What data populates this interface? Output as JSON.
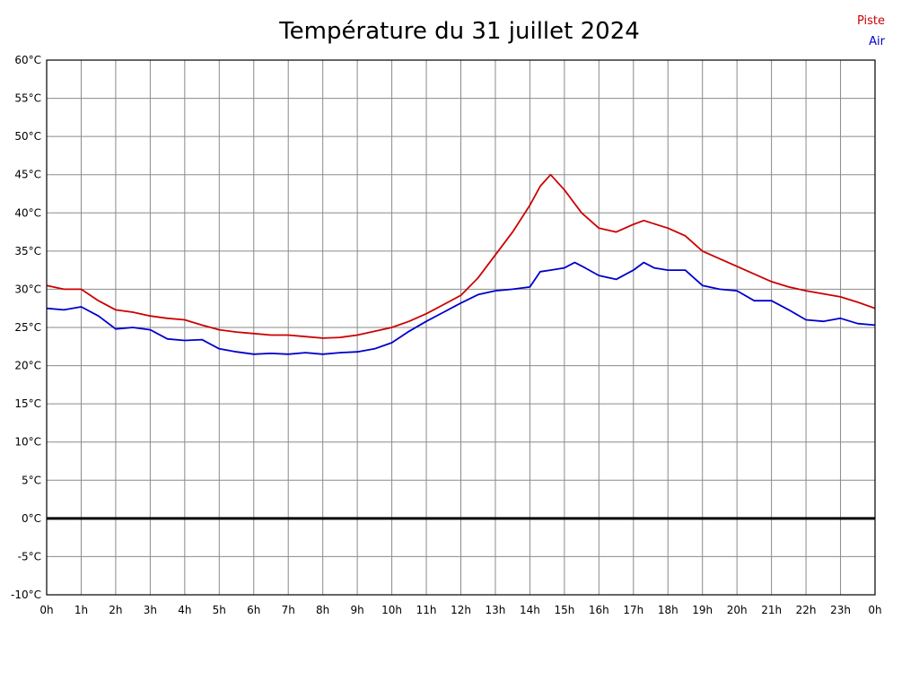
{
  "title": "Température du 31 juillet 2024",
  "legend": {
    "piste_label": "Piste",
    "air_label": "Air",
    "piste_color": "#cc0000",
    "air_color": "#0000cc"
  },
  "chart_data": {
    "type": "line",
    "title": "Température du 31 juillet 2024",
    "xlabel": "",
    "ylabel": "",
    "x_unit": "hour of day",
    "y_unit": "°C",
    "xlim": [
      0,
      24
    ],
    "ylim": [
      -10,
      60
    ],
    "grid": true,
    "zero_line": true,
    "legend_position": "top-right",
    "x_tick_labels": [
      "0h",
      "1h",
      "2h",
      "3h",
      "4h",
      "5h",
      "6h",
      "7h",
      "8h",
      "9h",
      "10h",
      "11h",
      "12h",
      "13h",
      "14h",
      "15h",
      "16h",
      "17h",
      "18h",
      "19h",
      "20h",
      "21h",
      "22h",
      "23h",
      "0h"
    ],
    "y_tick_labels": [
      "60°C",
      "55°C",
      "50°C",
      "45°C",
      "40°C",
      "35°C",
      "30°C",
      "25°C",
      "20°C",
      "15°C",
      "10°C",
      "5°C",
      "0°C",
      "-5°C",
      "-10°C"
    ],
    "series": [
      {
        "name": "Piste",
        "color": "#cc0000",
        "points": [
          [
            0,
            30.5
          ],
          [
            0.5,
            30.0
          ],
          [
            1,
            30.0
          ],
          [
            1.5,
            28.5
          ],
          [
            2,
            27.3
          ],
          [
            2.5,
            27.0
          ],
          [
            3,
            26.5
          ],
          [
            3.5,
            26.2
          ],
          [
            4,
            26.0
          ],
          [
            4.5,
            25.3
          ],
          [
            5,
            24.7
          ],
          [
            5.5,
            24.4
          ],
          [
            6,
            24.2
          ],
          [
            6.5,
            24.0
          ],
          [
            7,
            24.0
          ],
          [
            7.5,
            23.8
          ],
          [
            8,
            23.6
          ],
          [
            8.5,
            23.7
          ],
          [
            9,
            24.0
          ],
          [
            9.5,
            24.5
          ],
          [
            10,
            25.0
          ],
          [
            10.5,
            25.8
          ],
          [
            11,
            26.8
          ],
          [
            11.5,
            28.0
          ],
          [
            12,
            29.2
          ],
          [
            12.5,
            31.5
          ],
          [
            13,
            34.5
          ],
          [
            13.5,
            37.5
          ],
          [
            14,
            41.0
          ],
          [
            14.3,
            43.5
          ],
          [
            14.6,
            45.0
          ],
          [
            15,
            43.0
          ],
          [
            15.5,
            40.0
          ],
          [
            16,
            38.0
          ],
          [
            16.5,
            37.5
          ],
          [
            17,
            38.5
          ],
          [
            17.3,
            39.0
          ],
          [
            18,
            38.0
          ],
          [
            18.5,
            37.0
          ],
          [
            19,
            35.0
          ],
          [
            19.5,
            34.0
          ],
          [
            20,
            33.0
          ],
          [
            20.5,
            32.0
          ],
          [
            21,
            31.0
          ],
          [
            21.5,
            30.3
          ],
          [
            22,
            29.8
          ],
          [
            22.5,
            29.4
          ],
          [
            23,
            29.0
          ],
          [
            23.5,
            28.3
          ],
          [
            24,
            27.5
          ]
        ]
      },
      {
        "name": "Air",
        "color": "#0000cc",
        "points": [
          [
            0,
            27.5
          ],
          [
            0.5,
            27.3
          ],
          [
            1,
            27.7
          ],
          [
            1.5,
            26.5
          ],
          [
            2,
            24.8
          ],
          [
            2.5,
            25.0
          ],
          [
            3,
            24.7
          ],
          [
            3.5,
            23.5
          ],
          [
            4,
            23.3
          ],
          [
            4.5,
            23.4
          ],
          [
            5,
            22.2
          ],
          [
            5.5,
            21.8
          ],
          [
            6,
            21.5
          ],
          [
            6.5,
            21.6
          ],
          [
            7,
            21.5
          ],
          [
            7.5,
            21.7
          ],
          [
            8,
            21.5
          ],
          [
            8.5,
            21.7
          ],
          [
            9,
            21.8
          ],
          [
            9.5,
            22.2
          ],
          [
            10,
            23.0
          ],
          [
            10.5,
            24.5
          ],
          [
            11,
            25.8
          ],
          [
            11.5,
            27.0
          ],
          [
            12,
            28.2
          ],
          [
            12.5,
            29.3
          ],
          [
            13,
            29.8
          ],
          [
            13.5,
            30.0
          ],
          [
            14,
            30.3
          ],
          [
            14.3,
            32.3
          ],
          [
            14.6,
            32.5
          ],
          [
            15,
            32.8
          ],
          [
            15.3,
            33.5
          ],
          [
            15.6,
            32.8
          ],
          [
            16,
            31.8
          ],
          [
            16.5,
            31.3
          ],
          [
            17,
            32.5
          ],
          [
            17.3,
            33.5
          ],
          [
            17.6,
            32.8
          ],
          [
            18,
            32.5
          ],
          [
            18.5,
            32.5
          ],
          [
            19,
            30.5
          ],
          [
            19.5,
            30.0
          ],
          [
            20,
            29.8
          ],
          [
            20.5,
            28.5
          ],
          [
            21,
            28.5
          ],
          [
            21.5,
            27.3
          ],
          [
            22,
            26.0
          ],
          [
            22.5,
            25.8
          ],
          [
            23,
            26.2
          ],
          [
            23.5,
            25.5
          ],
          [
            24,
            25.3
          ]
        ]
      }
    ]
  }
}
